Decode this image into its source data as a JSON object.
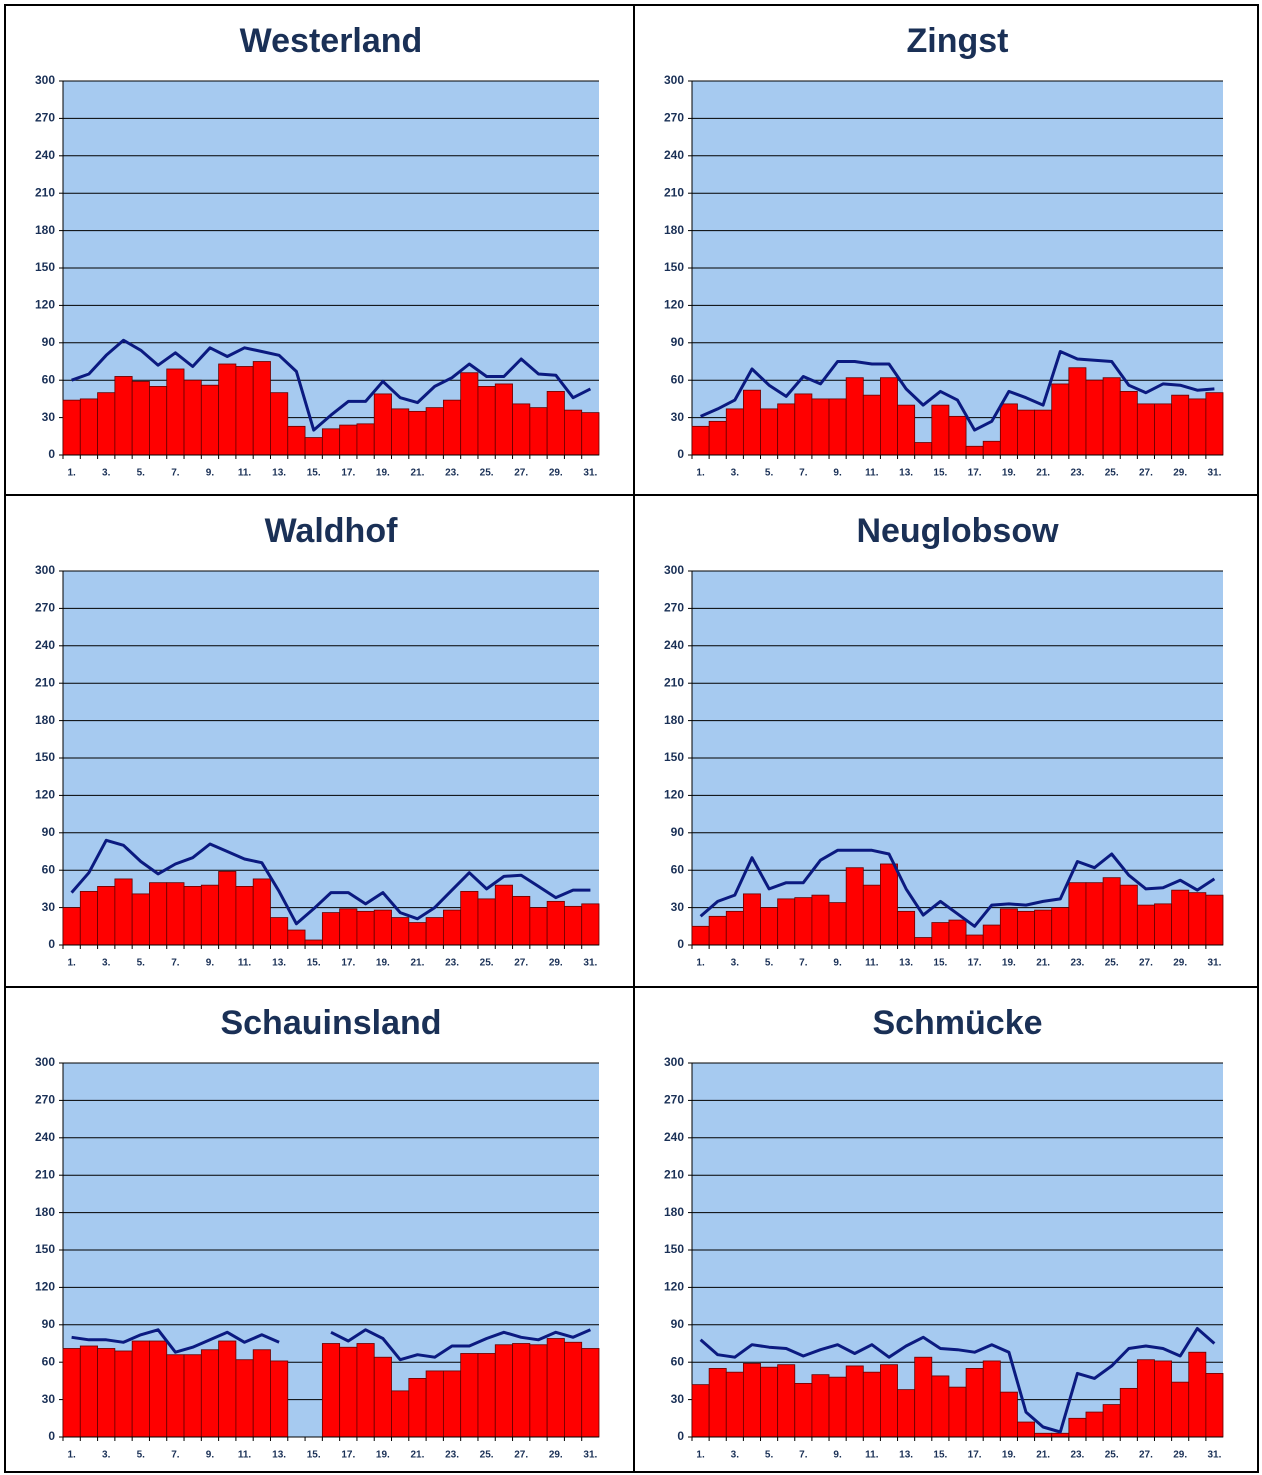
{
  "chart_data": [
    {
      "type": "bar",
      "title": "Westerland",
      "categories": [
        "1.",
        null,
        "3.",
        null,
        "5.",
        null,
        "7.",
        null,
        "9.",
        null,
        "11.",
        null,
        "13.",
        null,
        "15.",
        null,
        "17.",
        null,
        "19.",
        null,
        "21.",
        null,
        "23.",
        null,
        "25.",
        null,
        "27.",
        null,
        "29.",
        null,
        "31."
      ],
      "series": [
        {
          "type": "bar",
          "color": "#ff0000",
          "values": [
            44,
            45,
            50,
            63,
            59,
            55,
            69,
            60,
            56,
            73,
            71,
            75,
            50,
            23,
            14,
            21,
            24,
            25,
            49,
            37,
            35,
            38,
            44,
            66,
            55,
            57,
            41,
            38,
            51,
            36,
            34
          ]
        },
        {
          "type": "line",
          "color": "#0b1a80",
          "values": [
            60,
            65,
            80,
            92,
            84,
            72,
            82,
            71,
            86,
            79,
            86,
            83,
            80,
            67,
            20,
            32,
            43,
            43,
            59,
            46,
            42,
            55,
            62,
            73,
            63,
            63,
            77,
            65,
            64,
            46,
            53
          ]
        }
      ],
      "ylim": [
        0,
        300
      ],
      "yticks": [
        0,
        30,
        60,
        90,
        120,
        150,
        180,
        210,
        240,
        270,
        300
      ],
      "grid": true
    },
    {
      "type": "bar",
      "title": "Zingst",
      "categories": [
        "1.",
        null,
        "3.",
        null,
        "5.",
        null,
        "7.",
        null,
        "9.",
        null,
        "11.",
        null,
        "13.",
        null,
        "15.",
        null,
        "17.",
        null,
        "19.",
        null,
        "21.",
        null,
        "23.",
        null,
        "25.",
        null,
        "27.",
        null,
        "29.",
        null,
        "31."
      ],
      "series": [
        {
          "type": "bar",
          "color": "#ff0000",
          "values": [
            23,
            27,
            37,
            52,
            37,
            41,
            49,
            45,
            45,
            62,
            48,
            62,
            40,
            10,
            40,
            31,
            7,
            11,
            41,
            36,
            36,
            57,
            70,
            60,
            62,
            51,
            41,
            41,
            48,
            45,
            50
          ]
        },
        {
          "type": "line",
          "color": "#0b1a80",
          "values": [
            31,
            37,
            44,
            69,
            56,
            47,
            63,
            57,
            75,
            75,
            73,
            73,
            53,
            40,
            51,
            44,
            20,
            27,
            51,
            46,
            40,
            83,
            77,
            76,
            75,
            56,
            50,
            57,
            56,
            52,
            53
          ]
        }
      ],
      "ylim": [
        0,
        300
      ],
      "yticks": [
        0,
        30,
        60,
        90,
        120,
        150,
        180,
        210,
        240,
        270,
        300
      ],
      "grid": true
    },
    {
      "type": "bar",
      "title": "Waldhof",
      "categories": [
        "1.",
        null,
        "3.",
        null,
        "5.",
        null,
        "7.",
        null,
        "9.",
        null,
        "11.",
        null,
        "13.",
        null,
        "15.",
        null,
        "17.",
        null,
        "19.",
        null,
        "21.",
        null,
        "23.",
        null,
        "25.",
        null,
        "27.",
        null,
        "29.",
        null,
        "31."
      ],
      "series": [
        {
          "type": "bar",
          "color": "#ff0000",
          "values": [
            30,
            43,
            47,
            53,
            41,
            50,
            50,
            47,
            48,
            59,
            47,
            53,
            22,
            12,
            4,
            26,
            29,
            27,
            28,
            22,
            18,
            22,
            28,
            43,
            37,
            48,
            39,
            30,
            35,
            31,
            33
          ]
        },
        {
          "type": "line",
          "color": "#0b1a80",
          "values": [
            42,
            58,
            84,
            80,
            67,
            57,
            65,
            70,
            81,
            75,
            69,
            66,
            43,
            17,
            29,
            42,
            42,
            33,
            42,
            26,
            21,
            30,
            44,
            58,
            45,
            55,
            56,
            47,
            38,
            44,
            44
          ]
        }
      ],
      "ylim": [
        0,
        300
      ],
      "yticks": [
        0,
        30,
        60,
        90,
        120,
        150,
        180,
        210,
        240,
        270,
        300
      ],
      "grid": true
    },
    {
      "type": "bar",
      "title": "Neuglobsow",
      "categories": [
        "1.",
        null,
        "3.",
        null,
        "5.",
        null,
        "7.",
        null,
        "9.",
        null,
        "11.",
        null,
        "13.",
        null,
        "15.",
        null,
        "17.",
        null,
        "19.",
        null,
        "21.",
        null,
        "23.",
        null,
        "25.",
        null,
        "27.",
        null,
        "29.",
        null,
        "31."
      ],
      "series": [
        {
          "type": "bar",
          "color": "#ff0000",
          "values": [
            15,
            23,
            27,
            41,
            30,
            37,
            38,
            40,
            34,
            62,
            48,
            65,
            27,
            6,
            18,
            20,
            8,
            16,
            29,
            27,
            28,
            30,
            50,
            50,
            54,
            48,
            32,
            33,
            44,
            42,
            40
          ]
        },
        {
          "type": "line",
          "color": "#0b1a80",
          "values": [
            23,
            35,
            40,
            70,
            45,
            50,
            50,
            68,
            76,
            76,
            76,
            73,
            45,
            24,
            35,
            25,
            15,
            32,
            33,
            32,
            35,
            37,
            67,
            62,
            73,
            56,
            45,
            46,
            52,
            44,
            53
          ]
        }
      ],
      "ylim": [
        0,
        300
      ],
      "yticks": [
        0,
        30,
        60,
        90,
        120,
        150,
        180,
        210,
        240,
        270,
        300
      ],
      "grid": true
    },
    {
      "type": "bar",
      "title": "Schauinsland",
      "categories": [
        "1.",
        null,
        "3.",
        null,
        "5.",
        null,
        "7.",
        null,
        "9.",
        null,
        "11.",
        null,
        "13.",
        null,
        "15.",
        null,
        "17.",
        null,
        "19.",
        null,
        "21.",
        null,
        "23.",
        null,
        "25.",
        null,
        "27.",
        null,
        "29.",
        null,
        "31."
      ],
      "series": [
        {
          "type": "bar",
          "color": "#ff0000",
          "values": [
            71,
            73,
            71,
            69,
            77,
            77,
            66,
            66,
            70,
            77,
            62,
            70,
            61,
            null,
            null,
            75,
            72,
            75,
            64,
            37,
            47,
            53,
            53,
            67,
            67,
            74,
            75,
            74,
            79,
            76,
            71
          ]
        },
        {
          "type": "line",
          "color": "#0b1a80",
          "values": [
            80,
            78,
            78,
            76,
            82,
            86,
            68,
            72,
            78,
            84,
            76,
            82,
            76,
            null,
            null,
            84,
            77,
            86,
            79,
            62,
            66,
            64,
            73,
            73,
            79,
            84,
            80,
            78,
            84,
            80,
            86
          ]
        }
      ],
      "ylim": [
        0,
        300
      ],
      "yticks": [
        0,
        30,
        60,
        90,
        120,
        150,
        180,
        210,
        240,
        270,
        300
      ],
      "grid": true
    },
    {
      "type": "bar",
      "title": "Schmücke",
      "categories": [
        "1.",
        null,
        "3.",
        null,
        "5.",
        null,
        "7.",
        null,
        "9.",
        null,
        "11.",
        null,
        "13.",
        null,
        "15.",
        null,
        "17.",
        null,
        "19.",
        null,
        "21.",
        null,
        "23.",
        null,
        "25.",
        null,
        "27.",
        null,
        "29.",
        null,
        "31."
      ],
      "series": [
        {
          "type": "bar",
          "color": "#ff0000",
          "values": [
            42,
            55,
            52,
            59,
            56,
            58,
            43,
            50,
            48,
            57,
            52,
            58,
            38,
            64,
            49,
            40,
            55,
            61,
            36,
            12,
            3,
            3,
            15,
            20,
            26,
            39,
            62,
            61,
            44,
            68,
            51
          ]
        },
        {
          "type": "line",
          "color": "#0b1a80",
          "values": [
            78,
            66,
            64,
            74,
            72,
            71,
            65,
            70,
            74,
            67,
            74,
            64,
            73,
            80,
            71,
            70,
            68,
            74,
            68,
            20,
            8,
            4,
            51,
            47,
            57,
            71,
            73,
            71,
            65,
            87,
            75
          ]
        }
      ],
      "ylim": [
        0,
        300
      ],
      "yticks": [
        0,
        30,
        60,
        90,
        120,
        150,
        180,
        210,
        240,
        270,
        300
      ],
      "grid": true
    }
  ]
}
